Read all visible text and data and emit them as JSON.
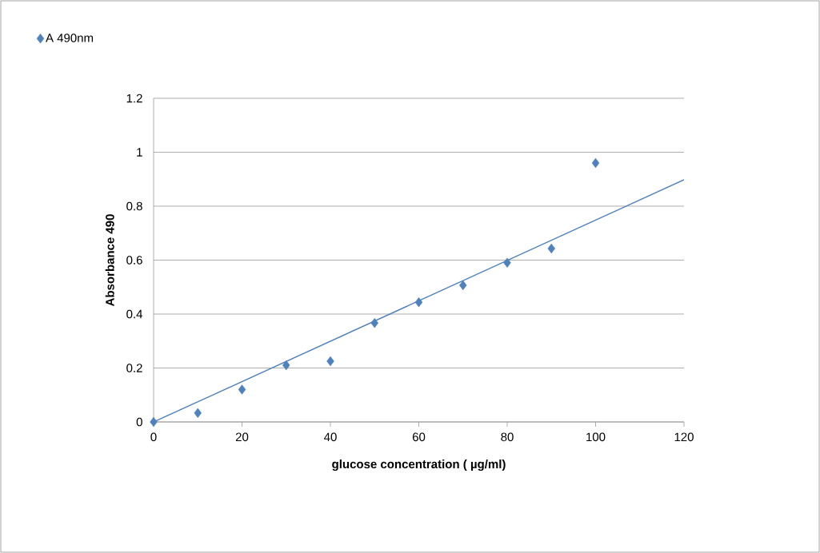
{
  "chart_data": {
    "type": "scatter",
    "xlabel": "glucose concentration ( µg/ml)",
    "ylabel": "Absorbance 490",
    "series": [
      {
        "name": "A 490nm",
        "color": "#4f81bd",
        "marker": "diamond",
        "x": [
          0,
          10,
          20,
          30,
          40,
          50,
          60,
          70,
          80,
          90,
          100
        ],
        "values": [
          0,
          0.033,
          0.12,
          0.21,
          0.225,
          0.367,
          0.444,
          0.507,
          0.59,
          0.643,
          0.96
        ]
      },
      {
        "color": "#4f81bd",
        "type": "line",
        "marker": "none",
        "x": [
          0,
          120
        ],
        "values": [
          0,
          0.898
        ]
      }
    ],
    "xlim": [
      0,
      120
    ],
    "ylim": [
      0,
      1.2
    ],
    "xticks": [
      0,
      20,
      40,
      60,
      80,
      100,
      120
    ],
    "yticks": [
      0,
      0.2,
      0.4,
      0.6,
      0.8,
      1,
      1.2
    ],
    "grid": "y",
    "legend": "top left"
  }
}
